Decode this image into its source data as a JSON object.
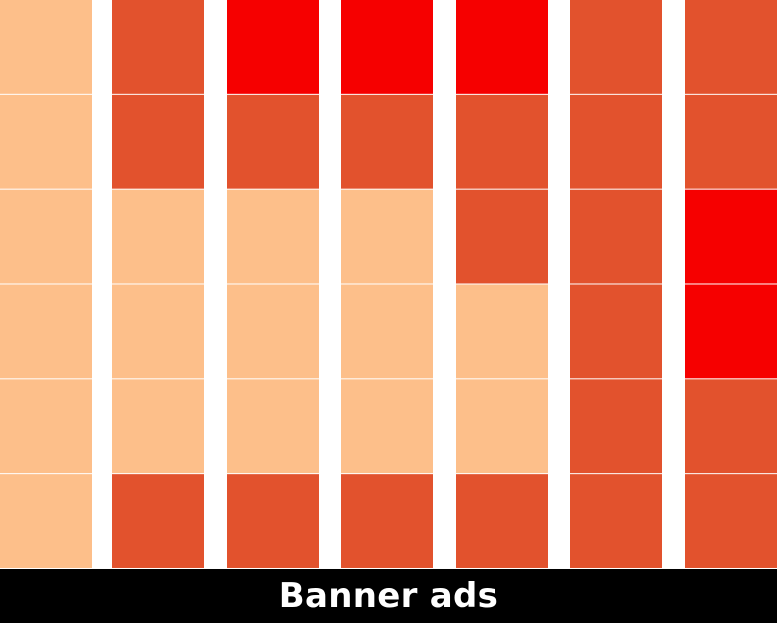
{
  "chart_data": {
    "type": "heatmap",
    "title": "Banner ads",
    "level_colors": {
      "1": "#FDBF8A",
      "2": "#E2522D",
      "3": "#F60000"
    },
    "columns": [
      [
        1,
        1,
        1,
        1,
        1,
        1
      ],
      [
        2,
        2,
        1,
        1,
        1,
        2
      ],
      [
        3,
        2,
        1,
        1,
        1,
        2
      ],
      [
        3,
        2,
        1,
        1,
        1,
        2
      ],
      [
        3,
        2,
        2,
        1,
        1,
        2
      ],
      [
        2,
        2,
        2,
        2,
        2,
        2
      ],
      [
        2,
        2,
        3,
        3,
        2,
        2
      ]
    ]
  }
}
